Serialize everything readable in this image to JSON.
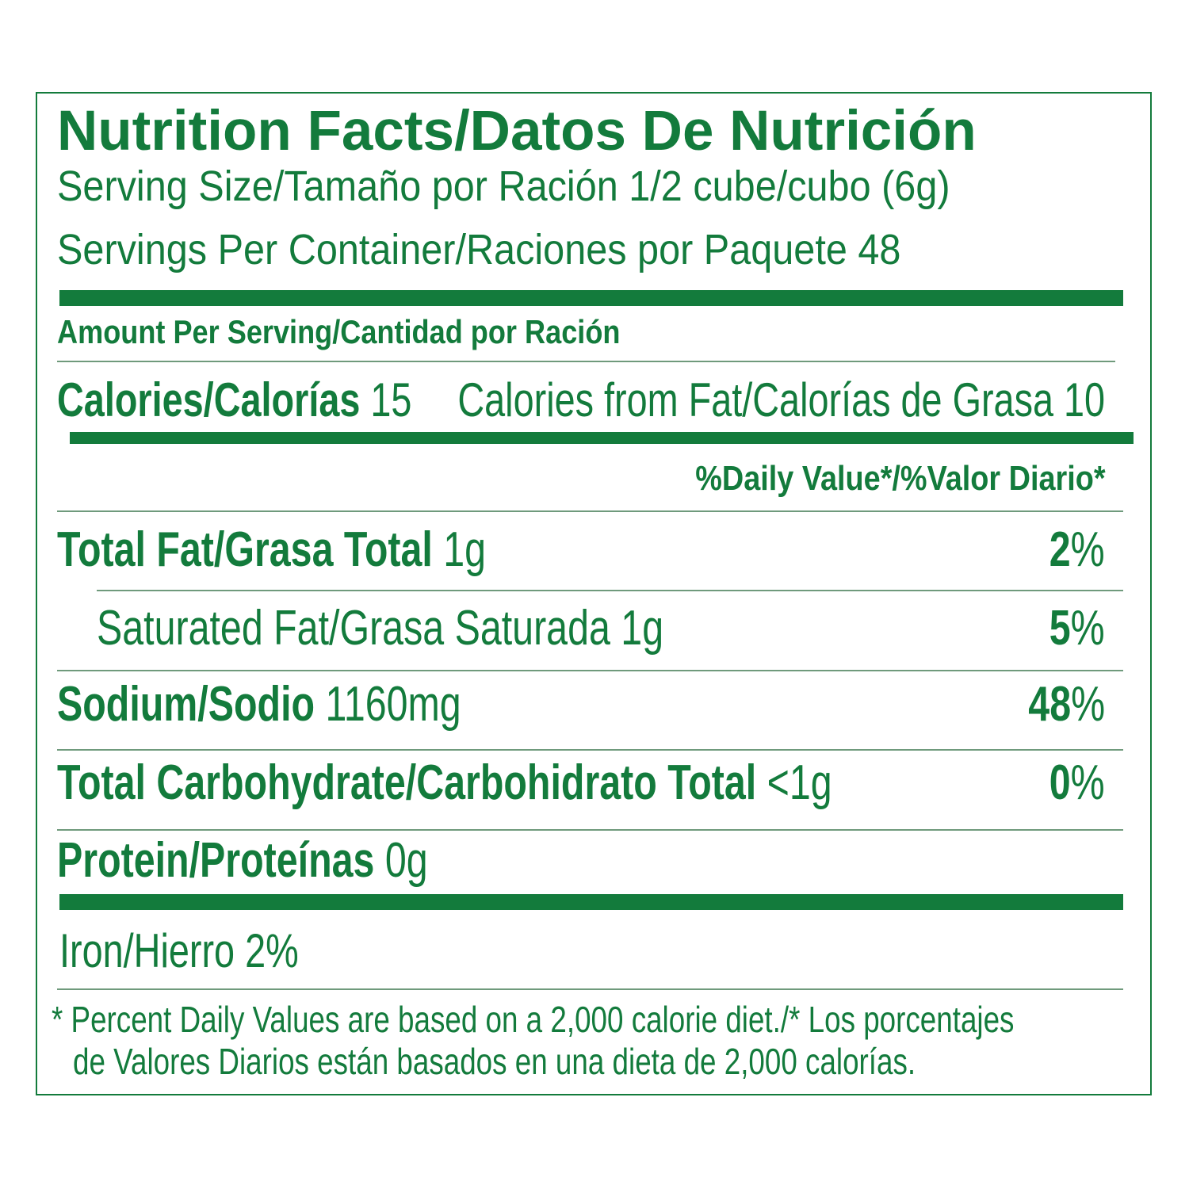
{
  "title": "Nutrition Facts/Datos De Nutrición",
  "serving_size": {
    "label": "Serving Size/Tamaño por Ración",
    "value": "1/2 cube/cubo (6g)"
  },
  "servings_per_container": {
    "label": "Servings Per Container/Raciones por Paquete",
    "value": "48"
  },
  "amount_per_serving": "Amount Per Serving/Cantidad por Ración",
  "calories": {
    "label": "Calories/Calorías",
    "value": "15"
  },
  "calories_from_fat": {
    "label": "Calories from Fat/Calorías de Grasa",
    "value": "10"
  },
  "daily_value_header": "%Daily Value*/%Valor Diario*",
  "nutrients": [
    {
      "name": "Total Fat/Grasa Total",
      "amount": "1g",
      "dv": "2",
      "dv_unit": "%"
    },
    {
      "name": "Saturated Fat/Grasa Saturada",
      "amount": "1g",
      "dv": "5",
      "dv_unit": "%"
    },
    {
      "name": "Sodium/Sodio",
      "amount": "1160mg",
      "dv": "48",
      "dv_unit": "%"
    },
    {
      "name": "Total Carbohydrate/Carbohidrato Total",
      "amount": "<1g",
      "dv": "0",
      "dv_unit": "%"
    },
    {
      "name": "Protein/Proteínas",
      "amount": "0g"
    }
  ],
  "iron": {
    "label": "Iron/Hierro",
    "value": "2%"
  },
  "footnote": [
    "* Percent Daily Values are based on a 2,000 calorie diet./* Los porcentajes",
    "de Valores Diarios están basados en una dieta de 2,000 calorías."
  ]
}
